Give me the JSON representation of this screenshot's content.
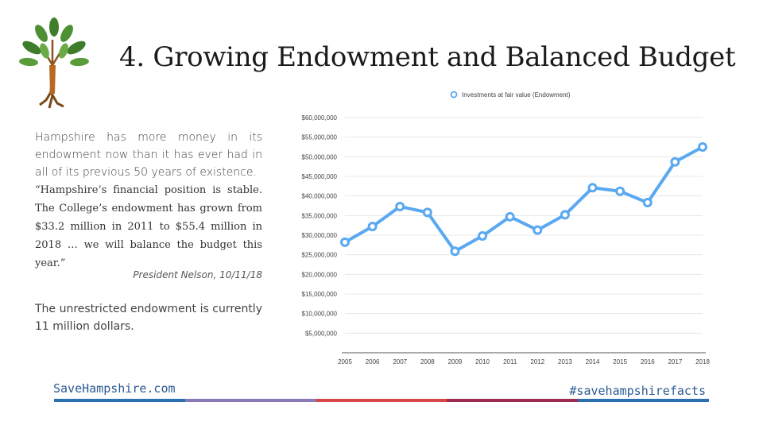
{
  "title": "4.  Growing Endowment and Balanced Budget",
  "paragraph1": "Hampshire has more money in its endowment now than it has ever had in all of its previous 50 years of existence.",
  "quote": "“Hampshire’s financial position is stable. The College’s endowment has grown from $33.2 million in 2011 to $55.4 million in 2018 … we will balance the budget this year.”",
  "attribution": "President Nelson, 10/11/18",
  "paragraph2": "The unrestricted endowment is currently 11 million dollars.",
  "footer": {
    "site": "SaveHampshire.com",
    "hashtag": "#savehampshirefacts"
  },
  "colors": {
    "accent_line": "#5aa9f0",
    "text_blue": "#2b5a93",
    "bar_segments": [
      "#2a6fb0",
      "#8a78b7",
      "#d8464a",
      "#9b2c50",
      "#2a6fb0"
    ]
  },
  "chart_data": {
    "type": "line",
    "legend": "Investments at fair value (Endowment)",
    "legend_position": "top-center",
    "categories": [
      "2005",
      "2006",
      "2007",
      "2008",
      "2009",
      "2010",
      "2011",
      "2012",
      "2013",
      "2014",
      "2015",
      "2016",
      "2017",
      "2018"
    ],
    "series": [
      {
        "name": "Investments at fair value (Endowment)",
        "values": [
          28200000,
          32200000,
          37300000,
          35800000,
          25900000,
          29800000,
          34700000,
          31300000,
          35200000,
          42100000,
          41200000,
          38300000,
          48700000,
          52500000
        ]
      }
    ],
    "y_ticks": [
      "$5,000,000",
      "$10,000,000",
      "$15,000,000",
      "$20,000,000",
      "$25,000,000",
      "$30,000,000",
      "$35,000,000",
      "$40,000,000",
      "$45,000,000",
      "$50,000,000",
      "$55,000,000",
      "$60,000,000"
    ],
    "ylim": [
      0,
      60000000
    ],
    "grid": true
  }
}
